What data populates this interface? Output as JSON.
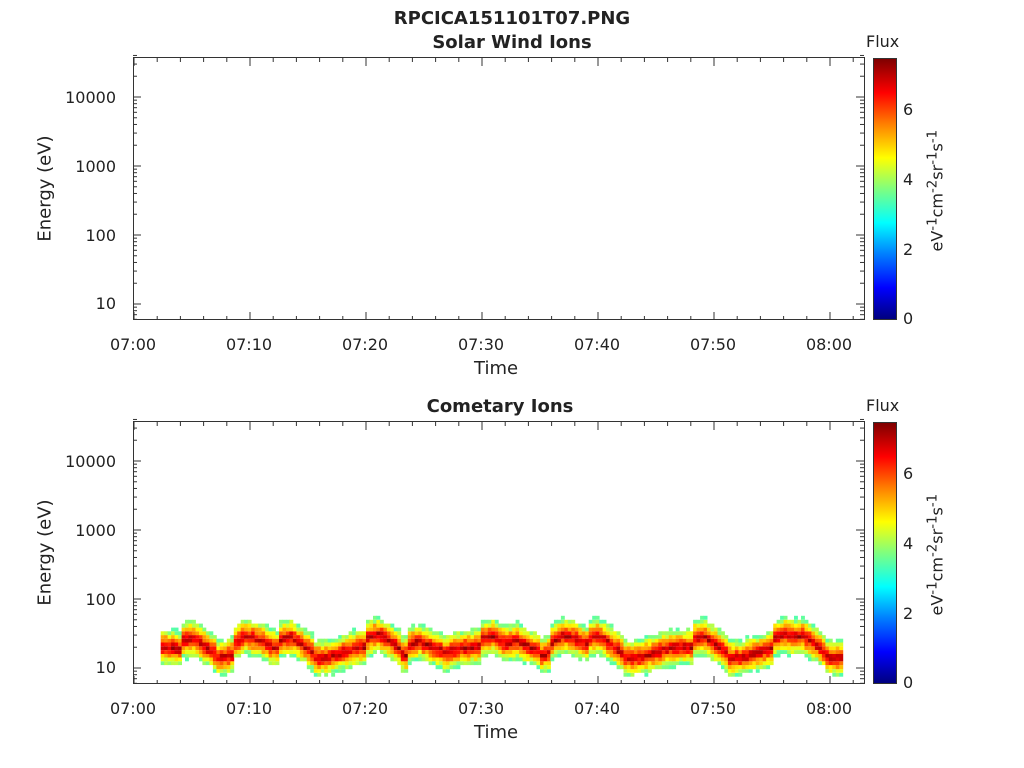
{
  "figure_title": "RPCICA151101T07.PNG",
  "chart_data": [
    {
      "type": "heatmap",
      "title": "Solar Wind Ions",
      "xlabel": "Time",
      "ylabel": "Energy (eV)",
      "x_ticks": [
        "07:00",
        "07:10",
        "07:20",
        "07:30",
        "07:40",
        "07:50",
        "08:00"
      ],
      "y_ticks": [
        "10",
        "100",
        "1000",
        "10000"
      ],
      "y_scale": "log",
      "ylim": [
        6,
        45000
      ],
      "colorbar": {
        "label": "Flux",
        "unit": "eV-1cm-2sr-1s-1",
        "ticks": [
          "0",
          "2",
          "4",
          "6"
        ],
        "range": [
          0,
          7.4
        ]
      },
      "data": []
    },
    {
      "type": "heatmap",
      "title": "Cometary Ions",
      "xlabel": "Time",
      "ylabel": "Energy (eV)",
      "x_ticks": [
        "07:00",
        "07:10",
        "07:20",
        "07:30",
        "07:40",
        "07:50",
        "08:00"
      ],
      "y_ticks": [
        "10",
        "100",
        "1000",
        "10000"
      ],
      "y_scale": "log",
      "ylim": [
        6,
        45000
      ],
      "colorbar": {
        "label": "Flux",
        "unit": "eV-1cm-2sr-1s-1",
        "ticks": [
          "0",
          "2",
          "4",
          "6"
        ],
        "range": [
          0,
          7.4
        ]
      },
      "time_range_min": [
        0,
        63
      ],
      "data_extent_min": [
        2.3,
        61
      ],
      "peak_energy_band_eV": [
        10,
        30
      ],
      "max_energy_eV": 80,
      "bursts_min": [
        4.5,
        9,
        13,
        20.5,
        24,
        30.5,
        32.5,
        36.5,
        39.5,
        48.5,
        55.5,
        57
      ]
    }
  ]
}
